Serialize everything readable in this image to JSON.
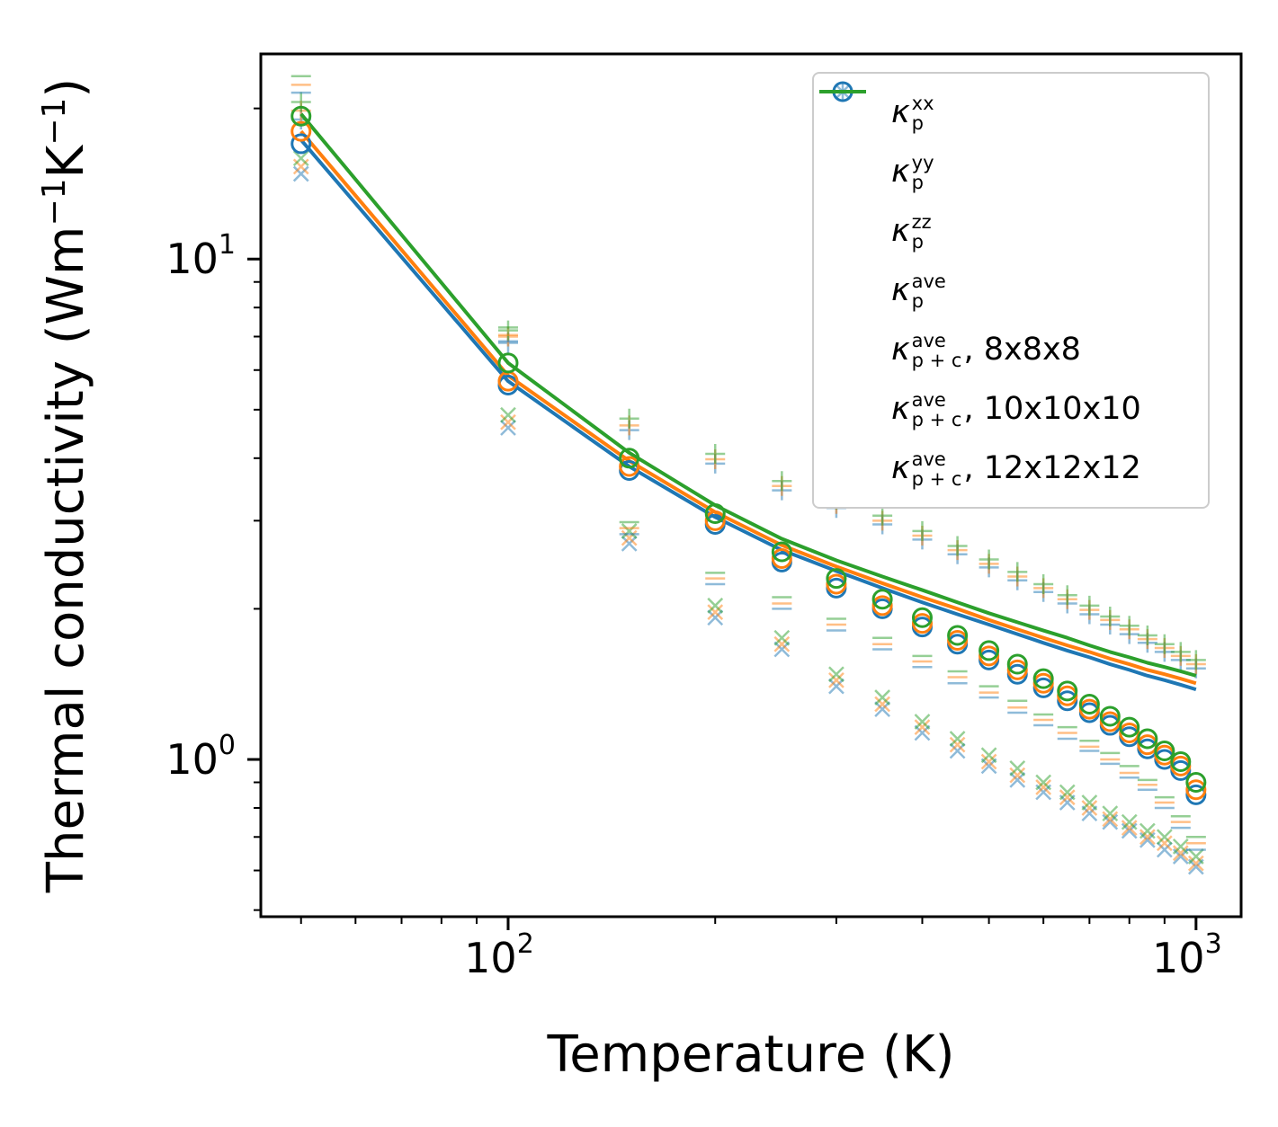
{
  "figure": {
    "background": "#ffffff",
    "xlabel": "Temperature (K)",
    "ylabel": "Thermal conductivity (Wm⁻¹K⁻¹)",
    "ylabel_parts": [
      "Thermal conductivity (Wm",
      {
        "sup": "−1"
      },
      "K",
      {
        "sup": "−1"
      },
      ")"
    ],
    "x_ticks": [
      {
        "value": 100,
        "base": "10",
        "exp": "2"
      },
      {
        "value": 1000,
        "base": "10",
        "exp": "3"
      }
    ],
    "y_ticks": [
      {
        "value": 1,
        "base": "10",
        "exp": "0"
      },
      {
        "value": 10,
        "base": "10",
        "exp": "1"
      }
    ],
    "x_minor": [
      50,
      60,
      70,
      80,
      90,
      200,
      300,
      400,
      500,
      600,
      700,
      800,
      900
    ],
    "y_minor": [
      0.5,
      0.6,
      0.7,
      0.8,
      0.9,
      2,
      3,
      4,
      5,
      6,
      7,
      8,
      9,
      20
    ],
    "xlim": [
      43.7,
      1163
    ],
    "ylim": [
      0.485,
      25.7
    ],
    "scale": "log-log"
  },
  "colors": {
    "blue": "#1f77b4",
    "orange": "#ff7f0e",
    "green": "#2ca02c",
    "faded_opacity": 0.5,
    "axis": "#000000",
    "legend_border": "#cccccc"
  },
  "chart_data": {
    "type": "scatter",
    "title": "",
    "xlabel": "Temperature (K)",
    "ylabel": "Thermal conductivity (Wm-1K-1)",
    "x_scale": "log",
    "y_scale": "log",
    "xlim": [
      43.7,
      1163
    ],
    "ylim": [
      0.485,
      25.7
    ],
    "legend_position": "upper right",
    "x": [
      50,
      100,
      150,
      200,
      250,
      300,
      350,
      400,
      450,
      500,
      550,
      600,
      650,
      700,
      750,
      800,
      850,
      900,
      950,
      1000
    ],
    "series": [
      {
        "name": "kappa_p_xx_8x8x8",
        "marker": "plus",
        "color": "blue",
        "faded": true,
        "values": [
          19.0,
          6.8,
          4.55,
          3.9,
          3.45,
          3.18,
          2.95,
          2.75,
          2.57,
          2.42,
          2.28,
          2.16,
          2.05,
          1.95,
          1.86,
          1.78,
          1.71,
          1.64,
          1.58,
          1.52
        ]
      },
      {
        "name": "kappa_p_xx_10x10x10",
        "marker": "plus",
        "color": "orange",
        "faded": true,
        "values": [
          19.8,
          7.0,
          4.65,
          3.98,
          3.52,
          3.24,
          3.0,
          2.8,
          2.62,
          2.46,
          2.32,
          2.2,
          2.09,
          1.99,
          1.9,
          1.82,
          1.74,
          1.67,
          1.61,
          1.55
        ]
      },
      {
        "name": "kappa_p_xx_12x12x12",
        "marker": "plus",
        "color": "green",
        "faded": true,
        "values": [
          20.6,
          7.2,
          4.8,
          4.08,
          3.6,
          3.31,
          3.07,
          2.86,
          2.67,
          2.51,
          2.37,
          2.24,
          2.13,
          2.03,
          1.93,
          1.85,
          1.77,
          1.7,
          1.64,
          1.58
        ]
      },
      {
        "name": "kappa_p_yy_8x8x8",
        "marker": "cross",
        "color": "blue",
        "faded": true,
        "values": [
          14.8,
          4.6,
          2.7,
          1.92,
          1.66,
          1.4,
          1.26,
          1.13,
          1.04,
          0.97,
          0.91,
          0.86,
          0.82,
          0.78,
          0.75,
          0.72,
          0.69,
          0.66,
          0.64,
          0.61
        ]
      },
      {
        "name": "kappa_p_yy_10x10x10",
        "marker": "cross",
        "color": "orange",
        "faded": true,
        "values": [
          15.3,
          4.72,
          2.77,
          1.97,
          1.7,
          1.44,
          1.29,
          1.16,
          1.07,
          0.99,
          0.93,
          0.88,
          0.84,
          0.8,
          0.76,
          0.73,
          0.7,
          0.68,
          0.65,
          0.62
        ]
      },
      {
        "name": "kappa_p_yy_12x12x12",
        "marker": "cross",
        "color": "green",
        "faded": true,
        "values": [
          15.9,
          4.88,
          2.86,
          2.03,
          1.75,
          1.48,
          1.33,
          1.19,
          1.1,
          1.02,
          0.96,
          0.9,
          0.86,
          0.82,
          0.78,
          0.75,
          0.72,
          0.7,
          0.67,
          0.64
        ]
      },
      {
        "name": "kappa_p_zz_8x8x8",
        "marker": "dash",
        "color": "blue",
        "faded": true,
        "values": [
          21.5,
          6.85,
          2.82,
          2.24,
          2.0,
          1.81,
          1.66,
          1.53,
          1.42,
          1.33,
          1.24,
          1.17,
          1.1,
          1.04,
          0.98,
          0.92,
          0.87,
          0.8,
          0.73,
          0.66
        ]
      },
      {
        "name": "kappa_p_zz_10x10x10",
        "marker": "dash",
        "color": "orange",
        "faded": true,
        "values": [
          22.3,
          7.05,
          2.9,
          2.3,
          2.05,
          1.86,
          1.7,
          1.57,
          1.46,
          1.36,
          1.27,
          1.2,
          1.13,
          1.06,
          1.0,
          0.94,
          0.89,
          0.82,
          0.75,
          0.68
        ]
      },
      {
        "name": "kappa_p_zz_12x12x12",
        "marker": "dash",
        "color": "green",
        "faded": true,
        "values": [
          23.2,
          7.3,
          2.98,
          2.36,
          2.11,
          1.91,
          1.75,
          1.61,
          1.5,
          1.4,
          1.31,
          1.23,
          1.16,
          1.09,
          1.03,
          0.97,
          0.91,
          0.84,
          0.77,
          0.7
        ]
      },
      {
        "name": "kappa_p_c_ave_8x8x8",
        "marker": "line",
        "color": "blue",
        "faded": false,
        "values": [
          17.3,
          5.7,
          3.85,
          3.05,
          2.62,
          2.38,
          2.2,
          2.06,
          1.95,
          1.86,
          1.78,
          1.71,
          1.65,
          1.6,
          1.55,
          1.51,
          1.47,
          1.44,
          1.41,
          1.38
        ]
      },
      {
        "name": "kappa_p_c_ave_10x10x10",
        "marker": "line",
        "color": "orange",
        "faded": false,
        "values": [
          18.0,
          5.85,
          3.95,
          3.12,
          2.68,
          2.43,
          2.25,
          2.11,
          2.0,
          1.9,
          1.82,
          1.75,
          1.69,
          1.64,
          1.59,
          1.55,
          1.51,
          1.48,
          1.45,
          1.42
        ]
      },
      {
        "name": "kappa_p_c_ave_12x12x12",
        "marker": "line",
        "color": "green",
        "faded": false,
        "values": [
          19.5,
          6.2,
          4.1,
          3.22,
          2.76,
          2.5,
          2.32,
          2.18,
          2.06,
          1.96,
          1.88,
          1.81,
          1.75,
          1.69,
          1.64,
          1.6,
          1.56,
          1.53,
          1.5,
          1.47
        ]
      },
      {
        "name": "kappa_p_ave_8x8x8",
        "marker": "circle",
        "color": "blue",
        "faded": false,
        "values": [
          17.0,
          5.6,
          3.78,
          2.95,
          2.48,
          2.2,
          2.0,
          1.84,
          1.7,
          1.58,
          1.48,
          1.39,
          1.31,
          1.24,
          1.17,
          1.11,
          1.05,
          1.0,
          0.95,
          0.85
        ]
      },
      {
        "name": "kappa_p_ave_10x10x10",
        "marker": "circle",
        "color": "orange",
        "faded": false,
        "values": [
          18.0,
          5.7,
          3.85,
          3.0,
          2.52,
          2.24,
          2.03,
          1.87,
          1.73,
          1.61,
          1.51,
          1.42,
          1.34,
          1.26,
          1.19,
          1.13,
          1.07,
          1.02,
          0.97,
          0.87
        ]
      },
      {
        "name": "kappa_p_ave_12x12x12",
        "marker": "circle",
        "color": "green",
        "faded": false,
        "values": [
          19.3,
          6.2,
          4.0,
          3.1,
          2.6,
          2.3,
          2.09,
          1.92,
          1.77,
          1.65,
          1.55,
          1.45,
          1.37,
          1.29,
          1.22,
          1.16,
          1.1,
          1.04,
          0.99,
          0.9
        ]
      }
    ]
  },
  "legend": {
    "items": [
      {
        "id": "kp-xx",
        "marker": "plus",
        "color": "blue",
        "faded": true,
        "kappa": "κ",
        "sup": "xx",
        "sub": "p",
        "suffix": ""
      },
      {
        "id": "kp-yy",
        "marker": "cross",
        "color": "blue",
        "faded": true,
        "kappa": "κ",
        "sup": "yy",
        "sub": "p",
        "suffix": ""
      },
      {
        "id": "kp-zz",
        "marker": "dash",
        "color": "blue",
        "faded": true,
        "kappa": "κ",
        "sup": "zz",
        "sub": "p",
        "suffix": ""
      },
      {
        "id": "kp-ave",
        "marker": "circle",
        "color": "blue",
        "faded": false,
        "kappa": "κ",
        "sup": "ave",
        "sub": "p",
        "suffix": ""
      },
      {
        "id": "kpc-ave-8",
        "marker": "line",
        "color": "blue",
        "faded": false,
        "kappa": "κ",
        "sup": "ave",
        "sub": "p + c",
        "suffix": ", 8x8x8"
      },
      {
        "id": "kpc-ave-10",
        "marker": "line",
        "color": "orange",
        "faded": false,
        "kappa": "κ",
        "sup": "ave",
        "sub": "p + c",
        "suffix": ", 10x10x10"
      },
      {
        "id": "kpc-ave-12",
        "marker": "line",
        "color": "green",
        "faded": false,
        "kappa": "κ",
        "sup": "ave",
        "sub": "p + c",
        "suffix": ", 12x12x12"
      }
    ]
  }
}
